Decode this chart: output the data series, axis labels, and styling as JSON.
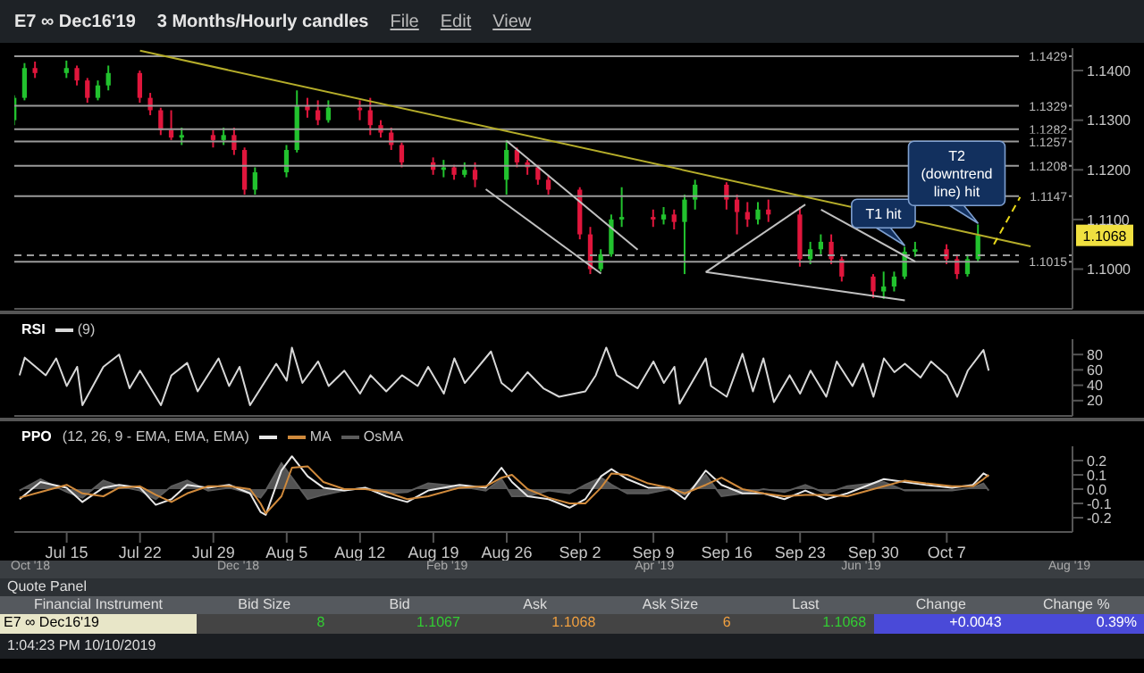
{
  "chart_data": [
    {
      "type": "candlestick",
      "title": "E7 ∞ Dec16'19",
      "subtitle": "3 Months/Hourly candles",
      "colors": [
        "#22c22e",
        "#22c22e",
        "#e0163c",
        "#22c22e",
        "#e0163c",
        "#e0163c",
        "#22c22e",
        "#22c22e",
        "#e0163c",
        "#e0163c",
        "#e0163c",
        "#e0163c",
        "#22c22e",
        "#e0163c",
        "#22c22e",
        "#e0163c",
        "#e0163c",
        "#22c22e",
        "#22c22e",
        "#22c22e",
        "#e0163c",
        "#e0163c",
        "#22c22e",
        "#e0163c",
        "#e0163c",
        "#e0163c",
        "#e0163c",
        "#e0163c",
        "#e0163c",
        "#22c22e",
        "#e0163c",
        "#22c22e",
        "#e0163c",
        "#22c22e",
        "#e0163c",
        "#e0163c",
        "#e0163c",
        "#e0163c",
        "#e0163c",
        "#e0163c",
        "#22c22e",
        "#22c22e",
        "#22c22e",
        "#e0163c",
        "#22c22e",
        "#e0163c",
        "#22c22e",
        "#22c22e",
        "#e0163c",
        "#e0163c",
        "#e0163c",
        "#22c22e",
        "#e0163c",
        "#e0163c",
        "#22c22e",
        "#22c22e",
        "#e0163c",
        "#e0163c",
        "#e0163c",
        "#22c22e",
        "#22c22e",
        "#22c22e",
        "#22c22e",
        "#e0163c",
        "#e0163c",
        "#22c22e",
        "#22c22e"
      ],
      "x": [
        "2019-07-10",
        "2019-07-11",
        "2019-07-12",
        "2019-07-15",
        "2019-07-16",
        "2019-07-17",
        "2019-07-18",
        "2019-07-19",
        "2019-07-22",
        "2019-07-23",
        "2019-07-24",
        "2019-07-25",
        "2019-07-26",
        "2019-07-29",
        "2019-07-30",
        "2019-07-31",
        "2019-08-01",
        "2019-08-02",
        "2019-08-05",
        "2019-08-06",
        "2019-08-07",
        "2019-08-08",
        "2019-08-09",
        "2019-08-12",
        "2019-08-13",
        "2019-08-14",
        "2019-08-15",
        "2019-08-16",
        "2019-08-19",
        "2019-08-20",
        "2019-08-21",
        "2019-08-22",
        "2019-08-23",
        "2019-08-26",
        "2019-08-27",
        "2019-08-28",
        "2019-08-29",
        "2019-08-30",
        "2019-09-02",
        "2019-09-03",
        "2019-09-04",
        "2019-09-05",
        "2019-09-06",
        "2019-09-09",
        "2019-09-10",
        "2019-09-11",
        "2019-09-12",
        "2019-09-13",
        "2019-09-16",
        "2019-09-17",
        "2019-09-18",
        "2019-09-19",
        "2019-09-20",
        "2019-09-23",
        "2019-09-24",
        "2019-09-25",
        "2019-09-26",
        "2019-09-27",
        "2019-09-30",
        "2019-10-01",
        "2019-10-02",
        "2019-10-03",
        "2019-10-04",
        "2019-10-07",
        "2019-10-08",
        "2019-10-09",
        "2019-10-10"
      ],
      "ohlc": [
        [
          1.13,
          1.135,
          1.129,
          1.1345
        ],
        [
          1.1345,
          1.1415,
          1.134,
          1.1405
        ],
        [
          1.1405,
          1.1418,
          1.1385,
          1.1395
        ],
        [
          1.1395,
          1.142,
          1.1385,
          1.1405
        ],
        [
          1.1405,
          1.141,
          1.137,
          1.138
        ],
        [
          1.138,
          1.1385,
          1.1335,
          1.1345
        ],
        [
          1.1345,
          1.138,
          1.134,
          1.137
        ],
        [
          1.137,
          1.141,
          1.136,
          1.1395
        ],
        [
          1.1395,
          1.14,
          1.1335,
          1.1345
        ],
        [
          1.1345,
          1.1355,
          1.131,
          1.132
        ],
        [
          1.132,
          1.1325,
          1.127,
          1.128
        ],
        [
          1.128,
          1.132,
          1.126,
          1.1265
        ],
        [
          1.1265,
          1.1285,
          1.125,
          1.127
        ],
        [
          1.127,
          1.128,
          1.1245,
          1.126
        ],
        [
          1.126,
          1.1285,
          1.125,
          1.127
        ],
        [
          1.127,
          1.1285,
          1.123,
          1.124
        ],
        [
          1.124,
          1.1245,
          1.115,
          1.116
        ],
        [
          1.116,
          1.1205,
          1.115,
          1.1195
        ],
        [
          1.1195,
          1.125,
          1.1185,
          1.124
        ],
        [
          1.124,
          1.136,
          1.1235,
          1.133
        ],
        [
          1.133,
          1.1345,
          1.1305,
          1.132
        ],
        [
          1.132,
          1.134,
          1.129,
          1.13
        ],
        [
          1.13,
          1.134,
          1.1295,
          1.1325
        ],
        [
          1.1325,
          1.134,
          1.13,
          1.132
        ],
        [
          1.132,
          1.1345,
          1.127,
          1.129
        ],
        [
          1.129,
          1.13,
          1.1265,
          1.1275
        ],
        [
          1.1275,
          1.1285,
          1.124,
          1.125
        ],
        [
          1.125,
          1.1255,
          1.1205,
          1.1215
        ],
        [
          1.1215,
          1.1225,
          1.119,
          1.12
        ],
        [
          1.12,
          1.122,
          1.1185,
          1.1205
        ],
        [
          1.1205,
          1.121,
          1.118,
          1.119
        ],
        [
          1.119,
          1.1215,
          1.1185,
          1.12
        ],
        [
          1.12,
          1.1215,
          1.1165,
          1.118
        ],
        [
          1.118,
          1.126,
          1.115,
          1.124
        ],
        [
          1.124,
          1.1245,
          1.1205,
          1.1215
        ],
        [
          1.1215,
          1.122,
          1.119,
          1.1205
        ],
        [
          1.1205,
          1.121,
          1.117,
          1.118
        ],
        [
          1.118,
          1.119,
          1.115,
          1.116
        ],
        [
          1.116,
          1.1165,
          1.106,
          1.107
        ],
        [
          1.107,
          1.1085,
          1.099,
          1.1
        ],
        [
          1.1,
          1.104,
          1.0995,
          1.103
        ],
        [
          1.103,
          1.111,
          1.1025,
          1.11
        ],
        [
          1.11,
          1.1165,
          1.1085,
          1.1105
        ],
        [
          1.1105,
          1.112,
          1.1085,
          1.11
        ],
        [
          1.11,
          1.1125,
          1.109,
          1.111
        ],
        [
          1.111,
          1.112,
          1.108,
          1.1095
        ],
        [
          1.1095,
          1.115,
          1.099,
          1.114
        ],
        [
          1.114,
          1.118,
          1.112,
          1.117
        ],
        [
          1.117,
          1.1175,
          1.112,
          1.114
        ],
        [
          1.114,
          1.115,
          1.107,
          1.1115
        ],
        [
          1.1115,
          1.1135,
          1.1085,
          1.11
        ],
        [
          1.11,
          1.1135,
          1.109,
          1.112
        ],
        [
          1.112,
          1.114,
          1.1095,
          1.111
        ],
        [
          1.111,
          1.1125,
          1.1005,
          1.102
        ],
        [
          1.102,
          1.1055,
          1.101,
          1.104
        ],
        [
          1.104,
          1.107,
          1.103,
          1.1055
        ],
        [
          1.1055,
          1.107,
          1.101,
          1.102
        ],
        [
          1.102,
          1.1025,
          1.0975,
          1.0985
        ],
        [
          1.0985,
          1.099,
          1.0942,
          1.0955
        ],
        [
          1.0955,
          1.0995,
          1.094,
          1.0965
        ],
        [
          1.0965,
          1.0995,
          1.0955,
          1.0985
        ],
        [
          1.0985,
          1.1045,
          1.098,
          1.1035
        ],
        [
          1.1035,
          1.1055,
          1.1025,
          1.104
        ],
        [
          1.104,
          1.105,
          1.101,
          1.102
        ],
        [
          1.102,
          1.103,
          1.098,
          1.099
        ],
        [
          1.099,
          1.103,
          1.0985,
          1.102
        ],
        [
          1.102,
          1.109,
          1.1015,
          1.1068
        ]
      ],
      "series": [
        {
          "type": "line",
          "color": "#b5ad2a",
          "x": [
            "2019-07-22",
            "2019-10-15"
          ],
          "values": [
            1.144,
            1.1046
          ]
        },
        {
          "type": "line",
          "color": "#c0c0c0",
          "x": [
            "2019-08-26",
            "2019-09-07T12:00"
          ],
          "values": [
            1.1258,
            1.1039
          ]
        },
        {
          "type": "line",
          "color": "#c0c0c0",
          "x": [
            "2019-08-24",
            "2019-09-04"
          ],
          "values": [
            1.1161,
            1.0991
          ]
        },
        {
          "type": "line",
          "color": "#c0c0c0",
          "x": [
            "2019-09-14",
            "2019-09-23T12:00"
          ],
          "values": [
            1.0994,
            1.113
          ]
        },
        {
          "type": "line",
          "color": "#c0c0c0",
          "x": [
            "2019-09-14",
            "2019-10-03"
          ],
          "values": [
            1.0994,
            1.0937
          ]
        },
        {
          "type": "line",
          "color": "#c0c0c0",
          "x": [
            "2019-09-25",
            "2019-10-04"
          ],
          "values": [
            1.112,
            1.1015
          ]
        },
        {
          "type": "line",
          "color": "#e8d81a",
          "line_style": "dashed",
          "x": [
            "2019-10-11T12:00",
            "2019-10-14"
          ],
          "values": [
            1.105,
            1.1145
          ]
        }
      ],
      "xlim": [
        "2019-07-10",
        "2019-10-19"
      ],
      "ylim": [
        1.092,
        1.1445
      ],
      "yticks": [
        {
          "value": 1.1,
          "label": "1.1000"
        },
        {
          "value": 1.11,
          "label": "1.1100"
        },
        {
          "value": 1.12,
          "label": "1.1200"
        },
        {
          "value": 1.13,
          "label": "1.1300"
        },
        {
          "value": 1.14,
          "label": "1.1400"
        }
      ],
      "tick_labels": "y",
      "ref_lines": [
        {
          "axis": "y",
          "value": 1.1429,
          "label": "1.1429",
          "color": "#9a9a9a"
        },
        {
          "axis": "y",
          "value": 1.1329,
          "label": "1.1329",
          "color": "#9a9a9a"
        },
        {
          "axis": "y",
          "value": 1.1282,
          "label": "1.1282",
          "color": "#9a9a9a"
        },
        {
          "axis": "y",
          "value": 1.1257,
          "label": "1.1257",
          "color": "#9a9a9a"
        },
        {
          "axis": "y",
          "value": 1.1208,
          "label": "1.1208",
          "color": "#9a9a9a"
        },
        {
          "axis": "y",
          "value": 1.1147,
          "label": "1.1147",
          "color": "#9a9a9a"
        },
        {
          "axis": "y",
          "value": 1.1028,
          "label": null,
          "color": "#9a9a9a",
          "line_style": "dashed"
        },
        {
          "axis": "y",
          "value": 1.1015,
          "label": "1.1015",
          "color": "#9a9a9a"
        }
      ],
      "annotations": [
        "File",
        "Edit",
        "View",
        {
          "text": "T1 hit",
          "x": "2019-10-03",
          "y": 1.104
        },
        {
          "text": "T2 (downtrend line) hit",
          "x": "2019-10-10",
          "y": 1.1085
        },
        {
          "text": "1.1068",
          "y": 1.1068
        }
      ]
    },
    {
      "type": "line",
      "title": "RSI",
      "legend": "top left",
      "tick_labels": "y",
      "x": [
        "2019-07-10T12:00",
        "2019-07-11",
        "2019-07-13",
        "2019-07-14",
        "2019-07-15",
        "2019-07-16",
        "2019-07-16T12:00",
        "2019-07-18T12:00",
        "2019-07-20",
        "2019-07-21",
        "2019-07-22",
        "2019-07-24",
        "2019-07-25",
        "2019-07-26T12:00",
        "2019-07-27T12:00",
        "2019-07-29T12:00",
        "2019-07-30T12:00",
        "2019-07-31T12:00",
        "2019-08-01T12:00",
        "2019-08-04",
        "2019-08-05",
        "2019-08-05T12:00",
        "2019-08-06T12:00",
        "2019-08-08",
        "2019-08-09",
        "2019-08-10T12:00",
        "2019-08-12",
        "2019-08-13",
        "2019-08-14T12:00",
        "2019-08-16",
        "2019-08-17T12:00",
        "2019-08-18T12:00",
        "2019-08-20",
        "2019-08-21",
        "2019-08-22",
        "2019-08-24T12:00",
        "2019-08-25T12:00",
        "2019-08-26T12:00",
        "2019-08-28",
        "2019-08-29T12:00",
        "2019-08-31",
        "2019-09-02T12:00",
        "2019-09-03T12:00",
        "2019-09-04T12:00",
        "2019-09-05T12:00",
        "2019-09-07T12:00",
        "2019-09-09",
        "2019-09-10",
        "2019-09-11",
        "2019-09-11T12:00",
        "2019-09-14",
        "2019-09-14T12:00",
        "2019-09-16",
        "2019-09-17T12:00",
        "2019-09-18T12:00",
        "2019-09-19T12:00",
        "2019-09-20T12:00",
        "2019-09-22",
        "2019-09-23",
        "2019-09-24",
        "2019-09-25T12:00",
        "2019-09-26T12:00",
        "2019-09-28",
        "2019-09-29",
        "2019-09-30",
        "2019-10-01",
        "2019-10-02",
        "2019-10-03",
        "2019-10-04T12:00",
        "2019-10-05T12:00",
        "2019-10-07",
        "2019-10-08",
        "2019-10-09",
        "2019-10-10T12:00",
        "2019-10-11"
      ],
      "series": [
        {
          "name": "(9)",
          "color": "#d8d8d8",
          "values": [
            53,
            76,
            53,
            75,
            39,
            64,
            14,
            64,
            80,
            36,
            59,
            14,
            53,
            69,
            32,
            75,
            39,
            64,
            14,
            68,
            46,
            89,
            43,
            71,
            39,
            59,
            29,
            53,
            32,
            53,
            39,
            64,
            29,
            75,
            43,
            84,
            43,
            32,
            57,
            36,
            25,
            32,
            53,
            89,
            53,
            36,
            71,
            43,
            64,
            16,
            75,
            39,
            25,
            81,
            32,
            75,
            18,
            53,
            29,
            59,
            25,
            71,
            39,
            68,
            25,
            75,
            57,
            68,
            50,
            71,
            53,
            25,
            59,
            86,
            59
          ]
        }
      ],
      "xlim": [
        "2019-07-10",
        "2019-10-19"
      ],
      "ylim": [
        0,
        100
      ],
      "yticks": [
        20,
        40,
        60,
        80
      ]
    },
    {
      "type": "line",
      "title": "PPO",
      "subtitle": "(12, 26, 9 - EMA, EMA, EMA)",
      "legend": "top left",
      "x": [
        "2019-07-10T12:00",
        "2019-07-12T12:00",
        "2019-07-15",
        "2019-07-16T12:00",
        "2019-07-18T12:00",
        "2019-07-20",
        "2019-07-22",
        "2019-07-23T12:00",
        "2019-07-25",
        "2019-07-26T12:00",
        "2019-07-28T12:00",
        "2019-07-30T12:00",
        "2019-08-01T12:00",
        "2019-08-02T12:00",
        "2019-08-03",
        "2019-08-04T12:00",
        "2019-08-05T12:00",
        "2019-08-07",
        "2019-08-08T12:00",
        "2019-08-10T12:00",
        "2019-08-12T12:00",
        "2019-08-14T12:00",
        "2019-08-16T12:00",
        "2019-08-18T12:00",
        "2019-08-21T12:00",
        "2019-08-24",
        "2019-08-25T12:00",
        "2019-08-26T12:00",
        "2019-08-28",
        "2019-08-30",
        "2019-09-01",
        "2019-09-02T12:00",
        "2019-09-04",
        "2019-09-05",
        "2019-09-06T12:00",
        "2019-09-08T12:00",
        "2019-09-10T12:00",
        "2019-09-12",
        "2019-09-14",
        "2019-09-15T12:00",
        "2019-09-17T12:00",
        "2019-09-19T12:00",
        "2019-09-21T12:00",
        "2019-09-23T12:00",
        "2019-09-25T12:00",
        "2019-09-27T12:00",
        "2019-10-01",
        "2019-10-03",
        "2019-10-05",
        "2019-10-07T12:00",
        "2019-10-09T12:00",
        "2019-10-10T12:00",
        "2019-10-11"
      ],
      "series": [
        {
          "color": "#e8e8e8",
          "values": [
            -0.07,
            0.05,
            0.01,
            -0.09,
            0.01,
            0.03,
            0.01,
            -0.11,
            -0.07,
            0.03,
            0.01,
            0.03,
            -0.03,
            -0.16,
            -0.18,
            0.13,
            0.23,
            0.09,
            0.01,
            -0.01,
            0.01,
            -0.05,
            -0.09,
            -0.01,
            0.03,
            0.01,
            0.15,
            0.05,
            -0.05,
            -0.07,
            -0.13,
            -0.07,
            0.09,
            0.14,
            0.07,
            0.01,
            0.01,
            -0.07,
            0.13,
            0.03,
            -0.03,
            -0.03,
            -0.07,
            -0.01,
            -0.07,
            -0.03,
            0.07,
            0.05,
            0.03,
            0.01,
            0.03,
            0.11,
            0.09
          ]
        },
        {
          "name": "MA",
          "color": "#d08a3c",
          "values": [
            -0.06,
            -0.02,
            0.03,
            -0.03,
            -0.05,
            0.01,
            0.02,
            -0.04,
            -0.09,
            -0.03,
            0.02,
            0.02,
            0.0,
            -0.1,
            -0.17,
            -0.05,
            0.15,
            0.16,
            0.05,
            0.0,
            0.0,
            -0.02,
            -0.07,
            -0.05,
            0.01,
            0.02,
            0.08,
            0.1,
            0.0,
            -0.06,
            -0.1,
            -0.1,
            0.01,
            0.11,
            0.1,
            0.04,
            0.01,
            -0.03,
            0.03,
            0.08,
            0.0,
            -0.03,
            -0.05,
            -0.04,
            -0.04,
            -0.05,
            0.02,
            0.06,
            0.04,
            0.02,
            0.02,
            0.07,
            0.1
          ]
        },
        {
          "type": "area",
          "name": "OsMA",
          "color": "#5c5c5c",
          "values": [
            -0.01,
            0.07,
            -0.02,
            -0.06,
            0.06,
            0.02,
            -0.01,
            -0.07,
            0.02,
            0.06,
            -0.01,
            0.01,
            -0.03,
            -0.06,
            -0.01,
            0.18,
            0.08,
            -0.07,
            -0.04,
            -0.01,
            0.01,
            -0.03,
            -0.02,
            0.04,
            0.02,
            -0.01,
            0.07,
            -0.05,
            -0.05,
            -0.01,
            -0.03,
            0.03,
            0.08,
            0.03,
            -0.03,
            -0.03,
            0.0,
            -0.04,
            0.1,
            -0.05,
            -0.03,
            0.0,
            -0.02,
            0.03,
            -0.03,
            0.02,
            0.05,
            -0.01,
            -0.01,
            -0.01,
            0.01,
            0.04,
            -0.01
          ]
        }
      ],
      "xlim": [
        "2019-07-10",
        "2019-10-19"
      ],
      "xticks": [
        {
          "value": "2019-07-15",
          "label": "Jul 15"
        },
        {
          "value": "2019-07-22",
          "label": "Jul 22"
        },
        {
          "value": "2019-07-29",
          "label": "Jul 29"
        },
        {
          "value": "2019-08-05",
          "label": "Aug 5"
        },
        {
          "value": "2019-08-12",
          "label": "Aug 12"
        },
        {
          "value": "2019-08-19",
          "label": "Aug 19"
        },
        {
          "value": "2019-08-26",
          "label": "Aug 26"
        },
        {
          "value": "2019-09-02",
          "label": "Sep 2"
        },
        {
          "value": "2019-09-09",
          "label": "Sep 9"
        },
        {
          "value": "2019-09-16",
          "label": "Sep 16"
        },
        {
          "value": "2019-09-23",
          "label": "Sep 23"
        },
        {
          "value": "2019-09-30",
          "label": "Sep 30"
        },
        {
          "value": "2019-10-07",
          "label": "Oct 7"
        }
      ],
      "ylim": [
        -0.3,
        0.3
      ],
      "yticks": [
        -0.2,
        -0.1,
        {
          "value": 0,
          "label": "0.0"
        },
        0.1,
        0.2
      ],
      "annotations": [
        "Oct '18",
        "Dec '18",
        "Feb '19",
        "Apr '19",
        "Jun '19",
        "Aug '19"
      ]
    },
    {
      "type": "other",
      "title": "Quote Panel",
      "subtitle": "1:04:23 PM 10/10/2019",
      "annotations": [
        "Financial Instrument",
        "Bid Size",
        "Bid",
        "Ask",
        "Ask Size",
        "Last",
        "Change",
        "Change %",
        "E7 ∞ Dec16'19",
        "8",
        "1.1067",
        "1.1068",
        "6",
        "1.1068",
        "+0.0043",
        "0.39%"
      ]
    }
  ]
}
